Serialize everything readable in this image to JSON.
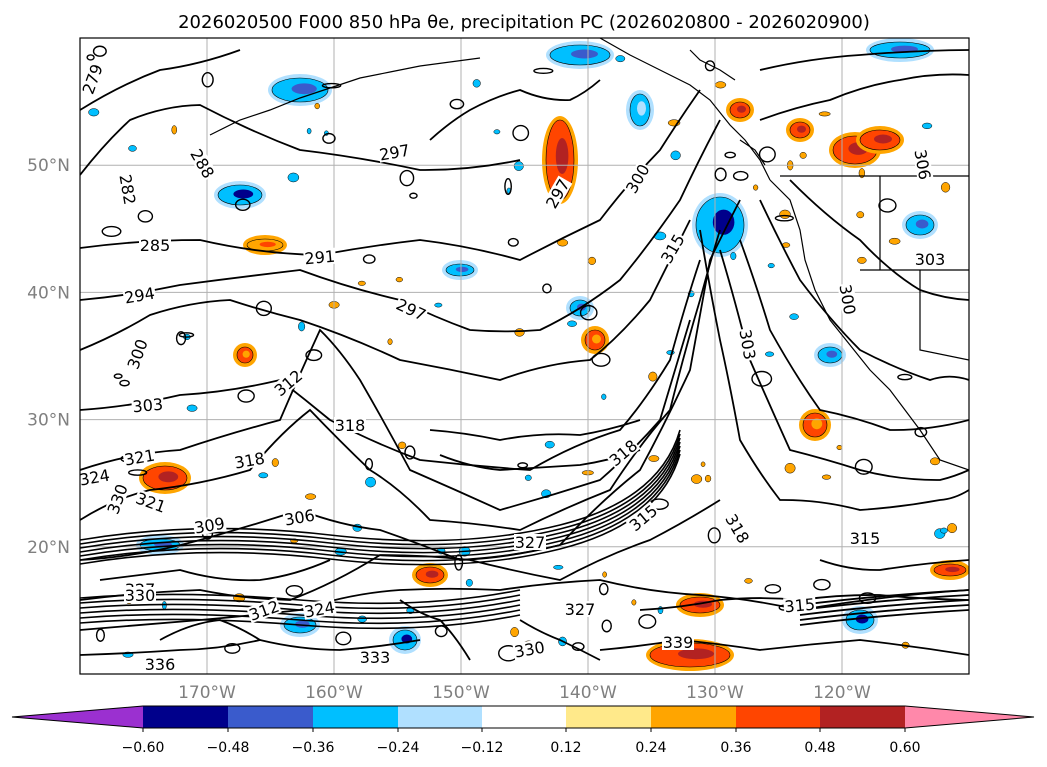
{
  "title": "2026020500 F000 850 hPa θe, precipitation PC (2026020800 - 2026020900)",
  "map": {
    "lon_range": [
      -180,
      -110
    ],
    "lat_range": [
      10,
      60
    ],
    "lon_ticks": [
      "170°W",
      "160°W",
      "150°W",
      "140°W",
      "130°W",
      "120°W"
    ],
    "lat_ticks": [
      "20°N",
      "30°N",
      "40°N",
      "50°N"
    ],
    "grid": true,
    "contour_labels": [
      "279",
      "282",
      "285",
      "288",
      "291",
      "294",
      "297",
      "300",
      "303",
      "306",
      "309",
      "312",
      "315",
      "318",
      "321",
      "324",
      "327",
      "330",
      "333",
      "336",
      "339"
    ]
  },
  "colorbar": {
    "ticks": [
      "−0.60",
      "−0.48",
      "−0.36",
      "−0.24",
      "−0.12",
      "0.12",
      "0.24",
      "0.36",
      "0.48",
      "0.60"
    ],
    "colors": [
      "#9b30d0",
      "#00008b",
      "#3a5bcc",
      "#00bfff",
      "#b0e0ff",
      "#ffffff",
      "#ffe98a",
      "#ffa500",
      "#ff4500",
      "#b22222",
      "#ff88aa"
    ]
  },
  "colors": {
    "contour": "#000000",
    "grid": "#b0b0b0",
    "coast": "#000000"
  }
}
